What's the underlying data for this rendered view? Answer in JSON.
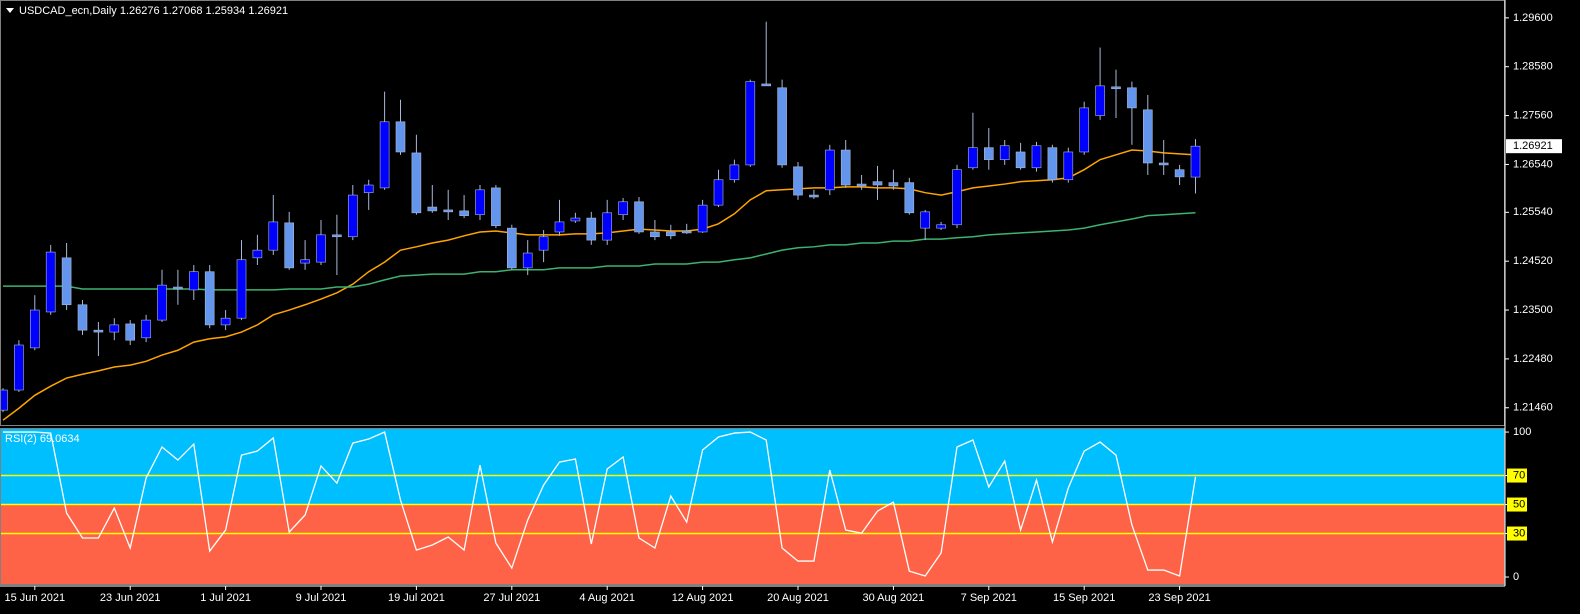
{
  "chart_data": [
    {
      "type": "candlestick",
      "title": "USDCAD_ecn,Daily  1.26276 1.27068 1.25934 1.26921",
      "categories": [
        null,
        null,
        "15 Jun 2021",
        null,
        null,
        null,
        null,
        null,
        "23 Jun 2021",
        null,
        null,
        null,
        null,
        null,
        "1 Jul 2021",
        null,
        null,
        null,
        null,
        null,
        "9 Jul 2021",
        null,
        null,
        null,
        null,
        null,
        "19 Jul 2021",
        null,
        null,
        null,
        null,
        null,
        "27 Jul 2021",
        null,
        null,
        null,
        null,
        null,
        "4 Aug 2021",
        null,
        null,
        null,
        null,
        null,
        "12 Aug 2021",
        null,
        null,
        null,
        null,
        null,
        "20 Aug 2021",
        null,
        null,
        null,
        null,
        null,
        "30 Aug 2021",
        null,
        null,
        null,
        null,
        null,
        "7 Sep 2021",
        null,
        null,
        null,
        null,
        null,
        "15 Sep 2021",
        null,
        null,
        null,
        null,
        null,
        "23 Sep 2021",
        null
      ],
      "open": [
        1.2141,
        1.2183,
        1.2271,
        1.2346,
        1.2459,
        1.2361,
        1.2308,
        1.2304,
        1.2321,
        1.2292,
        1.2329,
        1.2398,
        1.2392,
        1.243,
        1.2319,
        1.2333,
        1.2459,
        1.2475,
        1.2532,
        1.2448,
        1.245,
        1.2507,
        1.2503,
        1.2595,
        1.2605,
        1.2743,
        1.2678,
        1.2565,
        1.2559,
        1.2557,
        1.2549,
        1.2605,
        1.2521,
        1.2438,
        1.2475,
        1.2513,
        1.2536,
        1.2542,
        1.2496,
        1.2549,
        1.2576,
        1.2513,
        1.2513,
        1.2515,
        1.2513,
        1.2569,
        1.2622,
        1.2653,
        1.2822,
        1.2814,
        1.2649,
        1.259,
        1.2601,
        1.2684,
        1.2613,
        1.2618,
        1.2616,
        1.2616,
        1.2521,
        1.2521,
        1.2528,
        1.2647,
        1.2689,
        1.2664,
        1.268,
        1.2647,
        1.2689,
        1.2622,
        1.268,
        1.2756,
        1.2816,
        1.2814,
        1.2768,
        1.2657,
        1.2643,
        1.26276
      ],
      "high": [
        1.2187,
        1.2287,
        1.2381,
        1.2486,
        1.249,
        1.2371,
        1.2325,
        1.2333,
        1.2329,
        1.234,
        1.2434,
        1.2434,
        1.2444,
        1.2444,
        1.235,
        1.2496,
        1.2507,
        1.259,
        1.2555,
        1.2496,
        1.2538,
        1.2549,
        1.2611,
        1.2622,
        1.2806,
        1.2789,
        1.2716,
        1.2611,
        1.2601,
        1.259,
        1.2611,
        1.2611,
        1.2528,
        1.2496,
        1.2517,
        1.258,
        1.2553,
        1.2555,
        1.258,
        1.2584,
        1.2586,
        1.2538,
        1.2528,
        1.253,
        1.258,
        1.2643,
        1.2664,
        1.2831,
        1.2952,
        1.2831,
        1.2659,
        1.2601,
        1.2695,
        1.2705,
        1.2632,
        1.2651,
        1.2643,
        1.2626,
        1.2559,
        1.2534,
        1.2653,
        1.2762,
        1.273,
        1.2705,
        1.2699,
        1.2701,
        1.2695,
        1.2689,
        1.2785,
        1.2898,
        1.2852,
        1.2827,
        1.2799,
        1.2705,
        1.2653,
        1.27068
      ],
      "low": [
        1.2137,
        1.2179,
        1.2266,
        1.234,
        1.235,
        1.2298,
        1.2254,
        1.2287,
        1.2277,
        1.2283,
        1.2325,
        1.2361,
        1.2371,
        1.2312,
        1.2308,
        1.2329,
        1.2444,
        1.2465,
        1.2434,
        1.2434,
        1.2444,
        1.2423,
        1.2496,
        1.2559,
        1.2601,
        1.2674,
        1.2549,
        1.2553,
        1.2538,
        1.2542,
        1.2538,
        1.2521,
        1.2434,
        1.2423,
        1.245,
        1.2505,
        1.2532,
        1.2486,
        1.2486,
        1.2538,
        1.2509,
        1.2496,
        1.2498,
        1.2509,
        1.2511,
        1.2565,
        1.2616,
        1.2649,
        1.282,
        1.2647,
        1.258,
        1.2582,
        1.259,
        1.2605,
        1.2601,
        1.258,
        1.2601,
        1.2549,
        1.2496,
        1.2517,
        1.2521,
        1.2643,
        1.2643,
        1.2653,
        1.2643,
        1.2639,
        1.2616,
        1.2616,
        1.2674,
        1.2747,
        1.2751,
        1.2695,
        1.2632,
        1.2632,
        1.2611,
        1.25934
      ],
      "close": [
        1.2183,
        1.2277,
        1.235,
        1.2471,
        1.2361,
        1.2308,
        1.2304,
        1.2319,
        1.2287,
        1.2329,
        1.2402,
        1.2394,
        1.243,
        1.2319,
        1.2333,
        1.2455,
        1.2475,
        1.2534,
        1.2438,
        1.2455,
        1.2507,
        1.2503,
        1.259,
        1.2611,
        1.2743,
        1.268,
        1.2553,
        1.2557,
        1.2555,
        1.2547,
        1.2601,
        1.2526,
        1.2438,
        1.2469,
        1.2503,
        1.2534,
        1.2542,
        1.2496,
        1.2553,
        1.2576,
        1.2513,
        1.2503,
        1.2505,
        1.2511,
        1.2569,
        1.2622,
        1.2653,
        1.2827,
        1.2818,
        1.2653,
        1.259,
        1.2586,
        1.2684,
        1.2611,
        1.2609,
        1.2611,
        1.2609,
        1.2553,
        1.2555,
        1.2528,
        1.2643,
        1.2689,
        1.2664,
        1.2693,
        1.2647,
        1.2693,
        1.2622,
        1.268,
        1.2772,
        1.2818,
        1.2812,
        1.2772,
        1.2657,
        1.2653,
        1.2628,
        1.26921
      ],
      "up_color": "#0000ff",
      "down_color": "#6495ed",
      "wick_color": "#a9b8d6",
      "overlays": [
        {
          "color": "#ffa500",
          "values": [
            1.212,
            1.2145,
            1.2172,
            1.2191,
            1.2208,
            1.2216,
            1.2223,
            1.2231,
            1.2235,
            1.2243,
            1.2256,
            1.2266,
            1.2283,
            1.229,
            1.2294,
            1.2304,
            1.2319,
            1.234,
            1.235,
            1.2361,
            1.2373,
            1.2386,
            1.2404,
            1.243,
            1.245,
            1.2475,
            1.2482,
            1.249,
            1.2496,
            1.2505,
            1.2513,
            1.2515,
            1.2511,
            1.2507,
            1.2507,
            1.2507,
            1.2509,
            1.2509,
            1.2511,
            1.2515,
            1.2519,
            1.2517,
            1.2515,
            1.2515,
            1.2519,
            1.253,
            1.2551,
            1.258,
            1.2599,
            1.2601,
            1.2603,
            1.2605,
            1.2605,
            1.2607,
            1.2607,
            1.2605,
            1.2605,
            1.2603,
            1.2595,
            1.259,
            1.2597,
            1.2605,
            1.2609,
            1.2613,
            1.2618,
            1.262,
            1.2622,
            1.2626,
            1.2643,
            1.2664,
            1.2674,
            1.2684,
            1.2682,
            1.2678,
            1.2676,
            1.2674
          ]
        },
        {
          "color": "#3cb371",
          "values": [
            1.24,
            1.24,
            1.24,
            1.24,
            1.24,
            1.2394,
            1.2394,
            1.2394,
            1.2394,
            1.2394,
            1.2394,
            1.2394,
            1.2394,
            1.2392,
            1.2392,
            1.2392,
            1.2392,
            1.2392,
            1.2394,
            1.2394,
            1.2394,
            1.2398,
            1.2398,
            1.2404,
            1.2413,
            1.2421,
            1.2423,
            1.2425,
            1.2425,
            1.2425,
            1.243,
            1.243,
            1.2434,
            1.2434,
            1.2434,
            1.2438,
            1.2438,
            1.2438,
            1.2442,
            1.2442,
            1.2442,
            1.2446,
            1.2446,
            1.2446,
            1.245,
            1.245,
            1.2455,
            1.2459,
            1.2467,
            1.2475,
            1.248,
            1.2482,
            1.2486,
            1.2486,
            1.249,
            1.249,
            1.2494,
            1.2494,
            1.2498,
            1.2498,
            1.2501,
            1.2503,
            1.2507,
            1.2509,
            1.2511,
            1.2513,
            1.2515,
            1.2517,
            1.2521,
            1.2528,
            1.2534,
            1.254,
            1.2547,
            1.2549,
            1.2551,
            1.2553
          ]
        }
      ],
      "ylim": [
        1.211,
        1.2991
      ],
      "yticks": [
        {
          "value": 1.2146,
          "label": "1.21460"
        },
        {
          "value": 1.2248,
          "label": "1.22480"
        },
        {
          "value": 1.235,
          "label": "1.23500"
        },
        {
          "value": 1.2452,
          "label": "1.24520"
        },
        {
          "value": 1.2554,
          "label": "1.25540"
        },
        {
          "value": 1.2654,
          "label": "1.26540"
        },
        {
          "value": 1.2756,
          "label": "1.27560"
        },
        {
          "value": 1.2858,
          "label": "1.28580"
        },
        {
          "value": 1.296,
          "label": "1.29600"
        }
      ]
    },
    {
      "type": "line",
      "title": "RSI(2) 69.0634",
      "series": [
        {
          "color": "#ffffff",
          "values": [
            100,
            100,
            100,
            99.3,
            44.1,
            26.9,
            26.9,
            47.6,
            20.0,
            68.3,
            89.7,
            80.7,
            91.7,
            17.9,
            32.4,
            84.1,
            86.9,
            95.9,
            31.0,
            42.8,
            76.6,
            64.8,
            92.4,
            95.2,
            100,
            53.1,
            18.6,
            22.1,
            27.6,
            18.6,
            77.2,
            23.4,
            6.2,
            39.3,
            63.4,
            79.3,
            81.4,
            22.8,
            74.5,
            82.8,
            26.9,
            20.0,
            55.9,
            37.9,
            87.6,
            96.6,
            99.3,
            100,
            94.5,
            20.0,
            11.0,
            11.0,
            73.8,
            32.4,
            30.3,
            45.5,
            51.7,
            4.1,
            0.7,
            16.6,
            89.7,
            94.5,
            62.1,
            80.0,
            32.4,
            66.9,
            24.1,
            61.4,
            86.9,
            93.1,
            84.1,
            35.9,
            4.8,
            4.8,
            0.7,
            69.0634
          ]
        }
      ],
      "ylim": [
        -5.5,
        102.8
      ],
      "yticks": [
        0,
        30,
        50,
        70,
        100
      ],
      "levels": [
        30,
        50,
        70
      ],
      "level_color": "#ffff00",
      "zone_split": 50,
      "color_above": "#00bfff",
      "color_below": "#ff6347"
    }
  ]
}
